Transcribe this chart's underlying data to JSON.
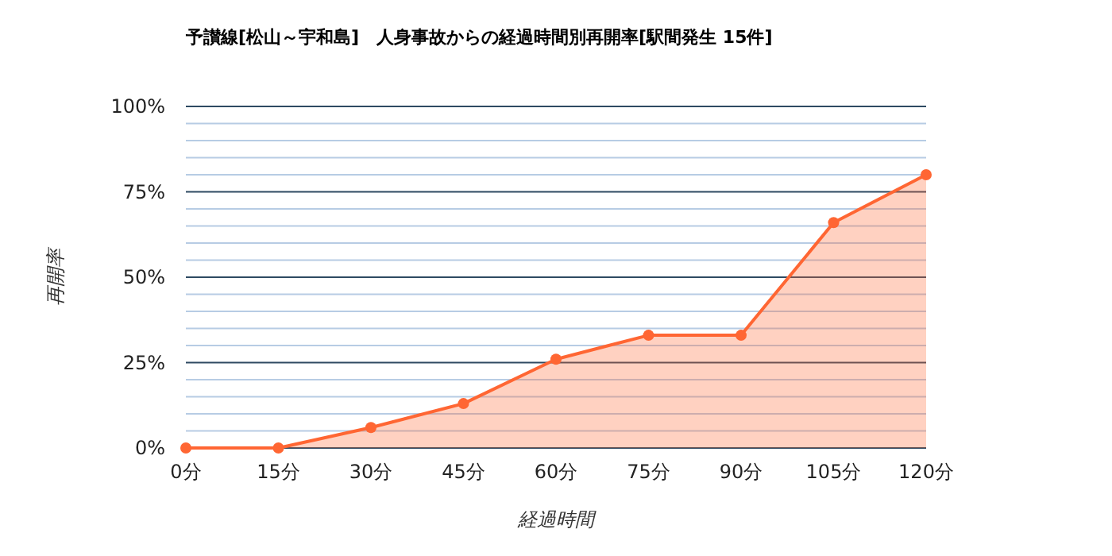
{
  "chart_data": {
    "type": "area",
    "title": "予讃線[松山～宇和島]　人身事故からの経過時間別再開率[駅間発生 15件]",
    "xlabel": "経過時間",
    "ylabel": "再開率",
    "categories": [
      "0分",
      "15分",
      "30分",
      "45分",
      "60分",
      "75分",
      "90分",
      "105分",
      "120分"
    ],
    "series": [
      {
        "color": "#ff6633",
        "values": [
          0,
          0,
          6,
          13,
          26,
          33,
          33,
          66,
          80
        ]
      }
    ],
    "ylim": [
      0,
      100
    ],
    "yticks": [
      {
        "value": 0,
        "label": "0%"
      },
      {
        "value": 5,
        "label": null
      },
      {
        "value": 10,
        "label": null
      },
      {
        "value": 15,
        "label": null
      },
      {
        "value": 20,
        "label": null
      },
      {
        "value": 25,
        "label": "25%"
      },
      {
        "value": 30,
        "label": null
      },
      {
        "value": 35,
        "label": null
      },
      {
        "value": 40,
        "label": null
      },
      {
        "value": 45,
        "label": null
      },
      {
        "value": 50,
        "label": "50%"
      },
      {
        "value": 55,
        "label": null
      },
      {
        "value": 60,
        "label": null
      },
      {
        "value": 65,
        "label": null
      },
      {
        "value": 70,
        "label": null
      },
      {
        "value": 75,
        "label": "75%"
      },
      {
        "value": 80,
        "label": null
      },
      {
        "value": 85,
        "label": null
      },
      {
        "value": 90,
        "label": null
      },
      {
        "value": 95,
        "label": null
      },
      {
        "value": 100,
        "label": "100%"
      }
    ],
    "grid": true,
    "marker": "circle"
  }
}
